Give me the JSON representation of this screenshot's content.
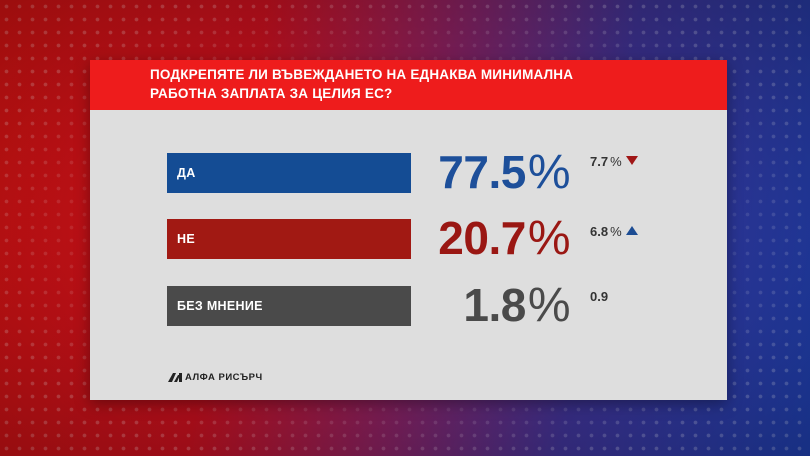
{
  "question": {
    "line1": "ПОДКРЕПЯТЕ ЛИ ВЪВЕЖДАНЕТО НА ЕДНАКВА МИНИМАЛНА",
    "line2": "РАБОТНА ЗАПЛАТА ЗА ЦЕЛИЯ ЕС?"
  },
  "colors": {
    "bar_yes": "#144c94",
    "bar_no": "#a11913",
    "bar_none": "#4a4a4a",
    "pct_yes": "#1d4f9a",
    "pct_no": "#9a1713",
    "pct_none": "#4a4a4a",
    "arrow_down": "#a01616",
    "arrow_up": "#1c4c93"
  },
  "chart_data": {
    "type": "bar",
    "title": "ПОДКРЕПЯТЕ ЛИ ВЪВЕЖДАНЕТО НА ЕДНАКВА МИНИМАЛНА РАБОТНА ЗАПЛАТА ЗА ЦЕЛИЯ ЕС?",
    "categories": [
      "ДА",
      "НЕ",
      "БЕЗ МНЕНИЕ"
    ],
    "values": [
      77.5,
      20.7,
      1.8
    ],
    "value_labels": [
      "77.5",
      "20.7",
      "1.8"
    ],
    "percent_sign": "%",
    "changes": [
      {
        "value": "7.7",
        "sign": "%",
        "direction": "down"
      },
      {
        "value": "6.8",
        "sign": "%",
        "direction": "up"
      },
      {
        "value": "0.9",
        "sign": "",
        "direction": "none"
      }
    ]
  },
  "footer": {
    "logo_text": "АЛФА РИСЪРЧ",
    "logo_icon": "alpha-research-logo-icon"
  }
}
